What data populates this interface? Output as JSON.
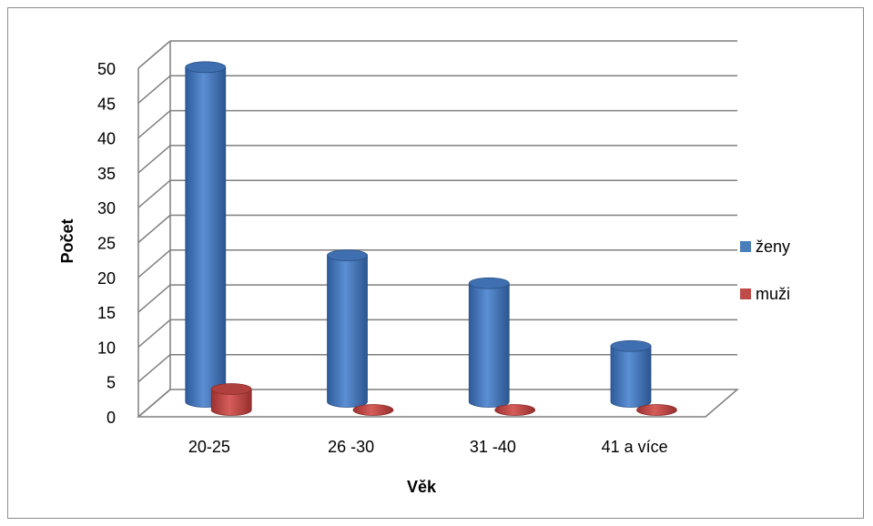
{
  "chart_data": {
    "type": "bar",
    "style": "3d-cylinder",
    "title": "",
    "xlabel": "Věk",
    "ylabel": "Počet",
    "categories": [
      "20-25",
      "26 -30",
      "31 -40",
      "41 a více"
    ],
    "series": [
      {
        "name": "ženy",
        "values": [
          48,
          21,
          17,
          8
        ],
        "color": "#4a7ebb"
      },
      {
        "name": "muži",
        "values": [
          3,
          0,
          0,
          0
        ],
        "color": "#be4b48"
      }
    ],
    "ylim": [
      0,
      50
    ],
    "yticks": [
      0,
      5,
      10,
      15,
      20,
      25,
      30,
      35,
      40,
      45,
      50
    ],
    "grid": true,
    "legend_position": "right"
  }
}
